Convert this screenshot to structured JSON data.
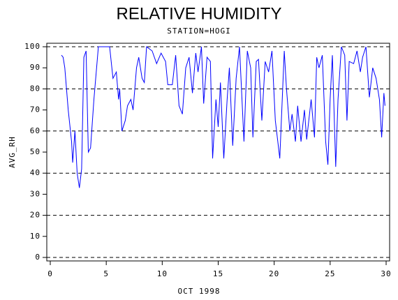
{
  "chart_data": {
    "type": "line",
    "title": "RELATIVE HUMIDITY",
    "subtitle": "STATION=HOGI",
    "x_label": "OCT 1998",
    "y_label": "AVG_RH",
    "xlim": [
      0,
      30
    ],
    "xticks": [
      0,
      5,
      10,
      15,
      20,
      25,
      30
    ],
    "ylim": [
      0,
      100
    ],
    "yticks": [
      0,
      10,
      20,
      30,
      40,
      50,
      60,
      70,
      80,
      90,
      100
    ],
    "grid": [
      0,
      20,
      40,
      60,
      80,
      100
    ],
    "series": [
      {
        "color": "#0000ff",
        "x": [
          1.0,
          1.15,
          1.3,
          1.6,
          1.9,
          2.0,
          2.2,
          2.4,
          2.6,
          2.8,
          3.0,
          3.2,
          3.4,
          3.6,
          3.9,
          4.3,
          5.3,
          5.6,
          5.9,
          6.1,
          6.2,
          6.4,
          6.7,
          6.9,
          7.2,
          7.4,
          7.7,
          7.9,
          8.2,
          8.4,
          8.6,
          9.1,
          9.5,
          9.9,
          10.3,
          10.5,
          10.9,
          11.2,
          11.5,
          11.8,
          12.1,
          12.4,
          12.7,
          13.0,
          13.2,
          13.5,
          13.7,
          14.0,
          14.3,
          14.5,
          14.8,
          15.0,
          15.2,
          15.5,
          15.8,
          16.0,
          16.3,
          16.6,
          16.9,
          17.3,
          17.6,
          17.9,
          18.1,
          18.4,
          18.6,
          18.9,
          19.2,
          19.5,
          19.8,
          20.1,
          20.5,
          20.9,
          21.1,
          21.4,
          21.6,
          21.9,
          22.1,
          22.4,
          22.7,
          22.9,
          23.3,
          23.6,
          23.8,
          24.0,
          24.3,
          24.6,
          24.8,
          25.0,
          25.2,
          25.5,
          25.7,
          26.0,
          26.3,
          26.5,
          26.7,
          27.1,
          27.4,
          27.7,
          27.9,
          28.2,
          28.5,
          28.8,
          29.1,
          29.4,
          29.6,
          29.8,
          29.9
        ],
        "values": [
          96,
          95,
          90,
          70,
          55,
          45,
          60,
          40,
          33,
          42,
          95,
          98,
          50,
          52,
          75,
          100,
          100,
          85,
          88,
          75,
          80,
          60,
          65,
          72,
          75,
          70,
          90,
          95,
          85,
          83,
          100,
          98,
          92,
          97,
          93,
          82,
          82,
          96,
          72,
          68,
          90,
          95,
          78,
          97,
          88,
          100,
          73,
          95,
          93,
          47,
          75,
          62,
          83,
          47,
          75,
          90,
          53,
          85,
          100,
          55,
          98,
          90,
          57,
          93,
          94,
          65,
          93,
          88,
          98,
          65,
          47,
          98,
          80,
          60,
          68,
          55,
          72,
          55,
          70,
          56,
          75,
          57,
          95,
          90,
          96,
          55,
          44,
          75,
          96,
          43,
          75,
          100,
          96,
          65,
          93,
          92,
          98,
          88,
          95,
          100,
          76,
          90,
          85,
          75,
          57,
          78,
          72
        ]
      }
    ]
  }
}
